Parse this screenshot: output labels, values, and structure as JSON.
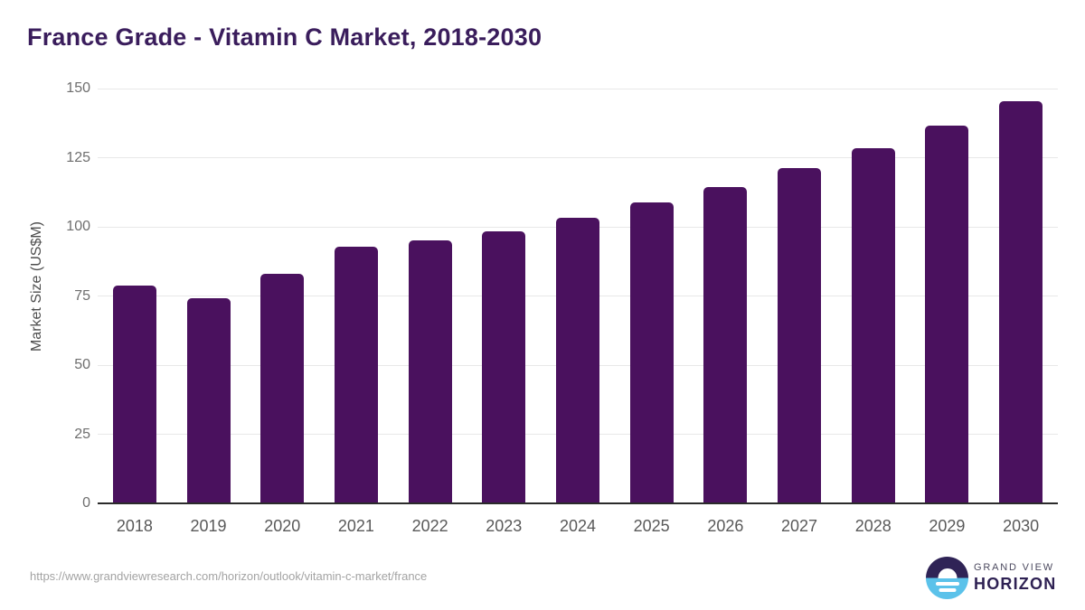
{
  "title": "France Grade - Vitamin C Market, 2018-2030",
  "source_url": "https://www.grandviewresearch.com/horizon/outlook/vitamin-c-market/france",
  "logo": {
    "top_text": "GRAND VIEW",
    "bottom_text": "HORIZON"
  },
  "colors": {
    "bar": "#4a115e",
    "title": "#3a1d5c",
    "gridline": "#e8e8e8",
    "axis_line": "#2b2b2b",
    "y_tick_label": "#6e6e6e",
    "x_tick_label": "#595959",
    "y_axis_title": "#4d4d4d",
    "source_url": "#a3a3a3",
    "logo_circle_top": "#2f2356",
    "logo_circle_bottom": "#5bc2ea",
    "logo_text_top": "#4c4a5f",
    "logo_text_bottom": "#2e2153"
  },
  "chart_data": {
    "type": "bar",
    "title": "France Grade - Vitamin C Market, 2018-2030",
    "categories": [
      "2018",
      "2019",
      "2020",
      "2021",
      "2022",
      "2023",
      "2024",
      "2025",
      "2026",
      "2027",
      "2028",
      "2029",
      "2030"
    ],
    "values": [
      78.8,
      74.1,
      82.9,
      92.9,
      95.2,
      98.5,
      103.4,
      108.7,
      114.5,
      121.3,
      128.5,
      136.5,
      145.5
    ],
    "xlabel": "",
    "ylabel": "Market Size (US$M)",
    "ylim": [
      0,
      150
    ],
    "yticks": [
      0,
      25,
      50,
      75,
      100,
      125,
      150
    ],
    "grid": true,
    "legend": false,
    "bar_color": "#4a115e"
  }
}
